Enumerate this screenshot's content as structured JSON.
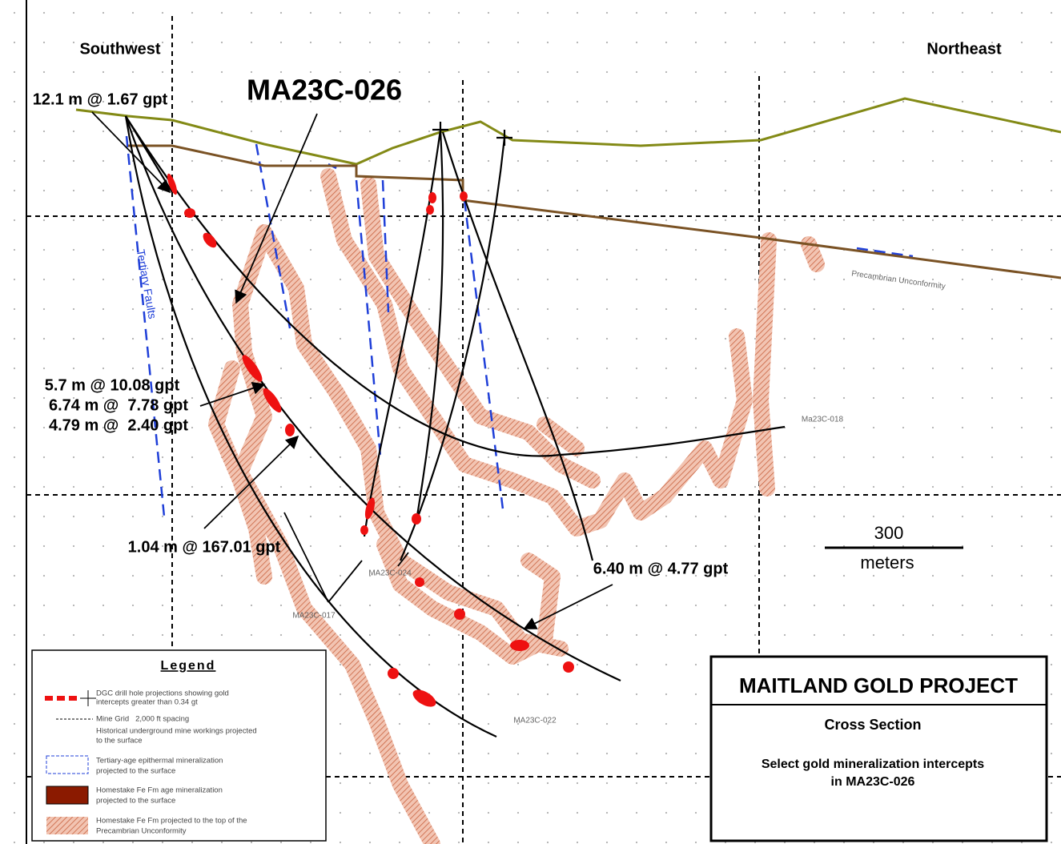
{
  "directions": {
    "left": "Southwest",
    "right": "Northeast"
  },
  "hole_title": "MA23C-026",
  "intercepts": [
    "12.1 m @ 1.67 gpt",
    "5.7 m @ 10.08 gpt",
    "6.74 m @  7.78 gpt",
    "4.79 m @  2.40 gpt",
    "1.04 m @ 167.01 gpt",
    "6.40 m @ 4.77 gpt"
  ],
  "hole_labels": [
    "MA23C-024",
    "MA23C-017",
    "MA23C-022",
    "Ma23C-018"
  ],
  "annotations": {
    "faults": "Tertiary Faults",
    "unconformity": "Precambrian Unconformity"
  },
  "scale": {
    "length": "300",
    "unit": "meters"
  },
  "legend": {
    "title": "Legend",
    "items": [
      {
        "lines": [
          "DGC drill hole projections showing gold",
          "intercepts greater than 0.34 gt"
        ]
      },
      {
        "lines": [
          "Mine Grid   2,000 ft spacing"
        ]
      },
      {
        "lines": [
          "Historical underground mine workings projected",
          "to the surface"
        ]
      },
      {
        "lines": [
          "Tertiary-age epithermal mineralization",
          "projected to the surface"
        ]
      },
      {
        "lines": [
          "Homestake Fe Fm age mineralization",
          "projected to the surface"
        ]
      },
      {
        "lines": [
          "Homestake Fe Fm projected to the top of the",
          "Precambrian Unconformity"
        ]
      }
    ]
  },
  "title_box": {
    "title": "MAITLAND GOLD PROJECT",
    "subtitle": "Cross Section",
    "description": [
      "Select gold mineralization intercepts",
      "in MA23C-026"
    ]
  }
}
